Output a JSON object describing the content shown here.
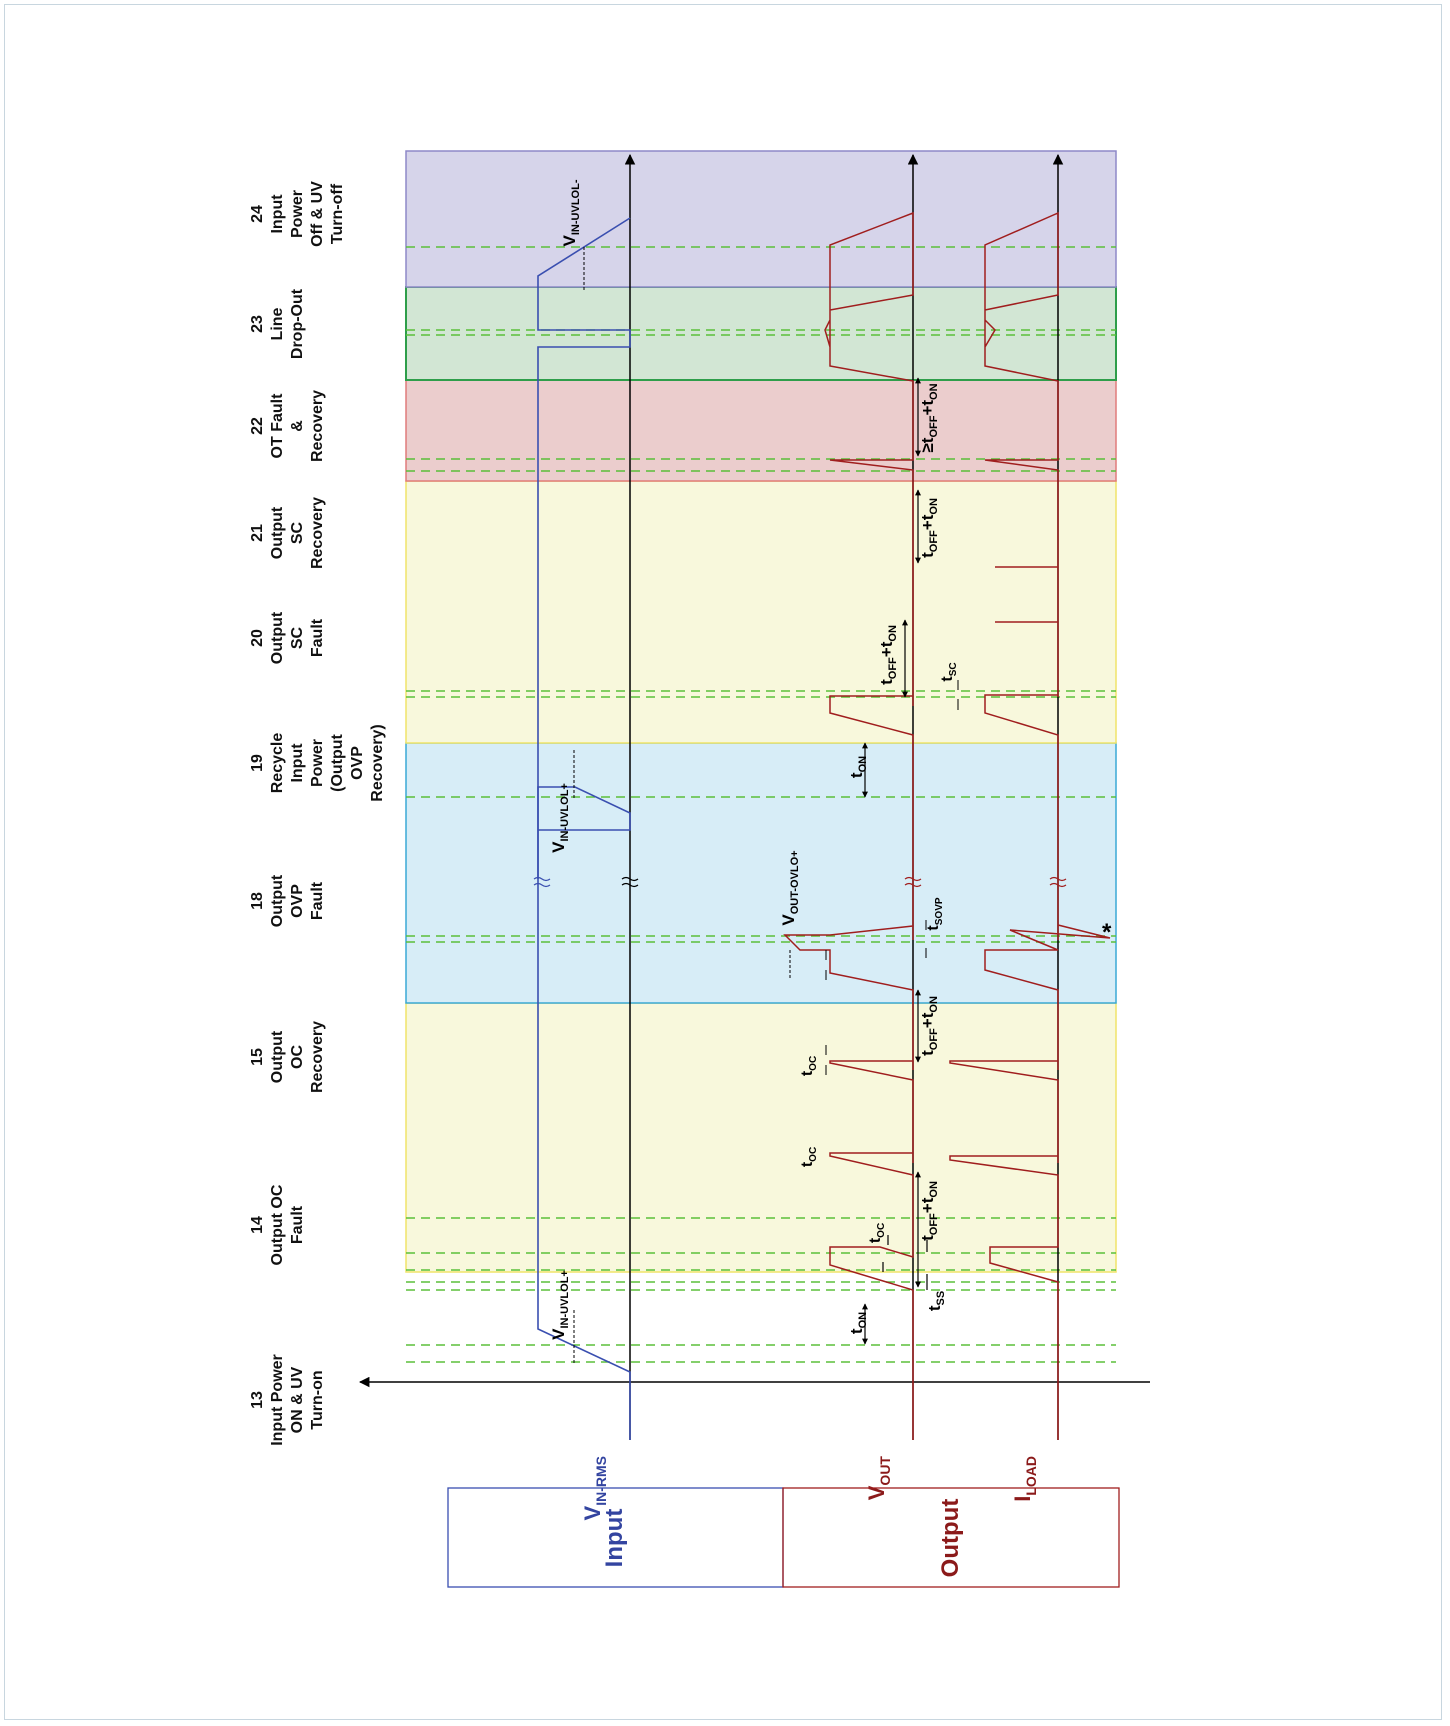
{
  "phases": [
    {
      "num": "13",
      "lines": [
        "Input Power",
        "ON & UV",
        "Turn-on"
      ],
      "color": ""
    },
    {
      "num": "14",
      "lines": [
        "Output OC",
        "Fault"
      ],
      "color": "#f8f8dc"
    },
    {
      "num": "15",
      "lines": [
        "Output",
        "OC",
        "Recovery"
      ],
      "color": "#f8f8dc"
    },
    {
      "num": "18",
      "lines": [
        "Output",
        "OVP",
        "Fault"
      ],
      "color": "#d7edf7"
    },
    {
      "num": "19",
      "lines": [
        "Recycle",
        "Input",
        "Power",
        "(Output",
        "OVP",
        "Recovery)"
      ],
      "color": "#d7edf7"
    },
    {
      "num": "20",
      "lines": [
        "Output",
        "SC",
        "Fault"
      ],
      "color": "#f8f8dc"
    },
    {
      "num": "21",
      "lines": [
        "Output",
        "SC",
        "Recovery"
      ],
      "color": "#f8f8dc"
    },
    {
      "num": "22",
      "lines": [
        "OT Fault",
        "&",
        "Recovery"
      ],
      "color": "#ebcdcd"
    },
    {
      "num": "23",
      "lines": [
        "Line",
        "Drop-Out"
      ],
      "color": "#d2e6d4"
    },
    {
      "num": "24",
      "lines": [
        "Input",
        "Power",
        "Off & UV",
        "Turn-off"
      ],
      "color": "#d6d4ea"
    }
  ],
  "signals": {
    "vin": {
      "base": "V",
      "sub": "IN-RMS",
      "color": "#3344a0"
    },
    "vout": {
      "base": "V",
      "sub": "OUT",
      "color": "#8b1a1a"
    },
    "iload": {
      "base": "I",
      "sub": "LOAD",
      "color": "#8b1a1a"
    }
  },
  "groups": {
    "input": "Input",
    "output": "Output"
  },
  "annotations": {
    "vin_uvlol_plus_1": {
      "base": "V",
      "sub": "IN-UVLOL+"
    },
    "vin_uvlol_plus_2": {
      "base": "V",
      "sub": "IN-UVLOL+"
    },
    "vin_uvlol_minus": {
      "base": "V",
      "sub": "IN-UVLOL-"
    },
    "vout_ovlo_plus": {
      "base": "V",
      "sub": "OUT-OVLO+"
    },
    "t_on": {
      "base": "t",
      "sub": "ON"
    },
    "t_ss": {
      "base": "t",
      "sub": "SS"
    },
    "t_oc": {
      "base": "t",
      "sub": "OC"
    },
    "t_sovp": {
      "base": "t",
      "sub": "SOVP"
    },
    "t_sc": {
      "base": "t",
      "sub": "SC"
    },
    "toff_ton": {
      "b1": "t",
      "s1": "OFF",
      "plus": "+",
      "b2": "t",
      "s2": "ON"
    },
    "ge_toff_ton": {
      "pre": "≥",
      "b1": "t",
      "s1": "OFF",
      "plus": "+",
      "b2": "t",
      "s2": "ON"
    },
    "asterisk": "*"
  },
  "colors": {
    "vin_line": "#3a4fb0",
    "output_line": "#a01e1e",
    "guide": "#5bbf3a",
    "axis": "#000000"
  }
}
